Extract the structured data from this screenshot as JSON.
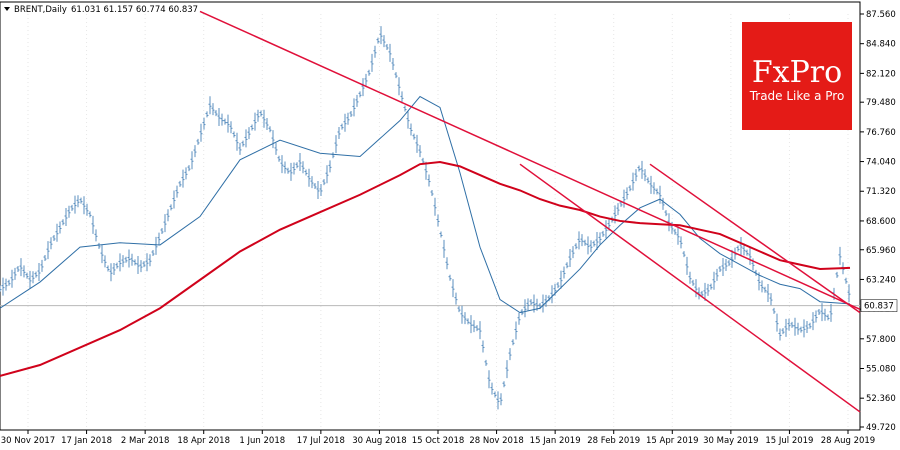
{
  "chart_data": {
    "type": "line",
    "header": {
      "symbol": "BRENT,Daily",
      "ohlc": "61.031 61.157 60.774 60.837"
    },
    "ylim": [
      49.72,
      87.56
    ],
    "y_ticks": [
      "87.560",
      "84.840",
      "82.120",
      "79.480",
      "76.760",
      "74.040",
      "71.320",
      "68.600",
      "65.960",
      "63.240",
      "60.520",
      "57.800",
      "55.080",
      "52.360",
      "49.720"
    ],
    "x_ticks": [
      "30 Nov 2017",
      "17 Jan 2018",
      "2 Mar 2018",
      "18 Apr 2018",
      "1 Jun 2018",
      "17 Jul 2018",
      "30 Aug 2018",
      "15 Oct 2018",
      "28 Nov 2018",
      "15 Jan 2019",
      "28 Feb 2019",
      "15 Apr 2019",
      "30 May 2019",
      "15 Jul 2019",
      "28 Aug 2019"
    ],
    "current_price": "60.837",
    "colors": {
      "price": "#5b8fbf",
      "ma_fast": "#2f6fa6",
      "ma_slow": "#d0021b",
      "trendline": "#e0103a",
      "grid": "#e6e6e6"
    },
    "series": [
      {
        "role": "price",
        "x": [
          0,
          10,
          20,
          30,
          40,
          50,
          60,
          70,
          80,
          90,
          100,
          110,
          120,
          130,
          140,
          150,
          160,
          170,
          180,
          190,
          200,
          210,
          220,
          230,
          240,
          250,
          260,
          270,
          280,
          290,
          300,
          310,
          320,
          330,
          340,
          350,
          360,
          370,
          380,
          390,
          400,
          410,
          420,
          430,
          440,
          450,
          460,
          470,
          480,
          490,
          500,
          510,
          520,
          530,
          540,
          550,
          560,
          570,
          580,
          590,
          600,
          610,
          620,
          630,
          640,
          650,
          660,
          670,
          680,
          690,
          700,
          710,
          720,
          730,
          740,
          750,
          760,
          770,
          780,
          790,
          800,
          810,
          820,
          830,
          840,
          850
        ],
        "values": [
          62.4,
          63.0,
          64.5,
          63.2,
          64.0,
          66.4,
          68.0,
          69.6,
          70.6,
          69.2,
          66.0,
          63.8,
          64.8,
          65.2,
          64.4,
          65.0,
          67.2,
          69.6,
          72.0,
          73.6,
          76.4,
          79.2,
          78.0,
          77.4,
          75.2,
          76.8,
          78.6,
          77.0,
          74.0,
          73.0,
          74.0,
          72.4,
          71.2,
          73.6,
          77.0,
          78.2,
          80.2,
          82.4,
          85.8,
          84.0,
          80.6,
          77.2,
          75.0,
          72.0,
          67.8,
          63.4,
          60.2,
          59.2,
          58.6,
          53.6,
          51.8,
          56.4,
          60.0,
          61.2,
          60.8,
          61.6,
          63.0,
          65.2,
          67.0,
          66.2,
          67.0,
          68.4,
          70.0,
          71.6,
          73.6,
          72.0,
          71.0,
          68.2,
          67.0,
          63.4,
          61.8,
          62.4,
          64.2,
          64.8,
          66.4,
          65.4,
          62.8,
          61.8,
          58.2,
          59.2,
          58.6,
          59.0,
          60.4,
          59.6,
          65.4,
          61.6
        ]
      },
      {
        "role": "ma_fast",
        "x": [
          0,
          40,
          80,
          120,
          160,
          200,
          240,
          280,
          320,
          360,
          400,
          420,
          440,
          460,
          480,
          500,
          520,
          540,
          560,
          580,
          600,
          620,
          640,
          660,
          680,
          700,
          720,
          740,
          760,
          780,
          800,
          820,
          850
        ],
        "values": [
          60.6,
          63.0,
          66.2,
          66.6,
          66.4,
          69.0,
          74.2,
          76.0,
          74.8,
          74.5,
          77.8,
          80.0,
          79.0,
          73.0,
          66.2,
          61.4,
          60.2,
          60.6,
          62.4,
          64.2,
          66.4,
          68.2,
          69.8,
          70.6,
          69.2,
          67.0,
          65.6,
          64.6,
          63.6,
          62.8,
          62.4,
          61.2,
          61.0
        ]
      },
      {
        "role": "ma_slow",
        "x": [
          0,
          40,
          80,
          120,
          160,
          200,
          240,
          280,
          320,
          360,
          400,
          420,
          440,
          460,
          480,
          500,
          520,
          540,
          560,
          580,
          600,
          620,
          640,
          660,
          680,
          700,
          720,
          740,
          760,
          780,
          800,
          820,
          850
        ],
        "values": [
          54.4,
          55.4,
          57.0,
          58.6,
          60.6,
          63.2,
          65.8,
          67.8,
          69.4,
          71.0,
          72.8,
          73.8,
          74.0,
          73.6,
          72.8,
          72.0,
          71.4,
          70.6,
          70.0,
          69.6,
          69.0,
          68.6,
          68.4,
          68.3,
          68.2,
          67.8,
          67.4,
          66.6,
          65.8,
          65.0,
          64.6,
          64.2,
          64.3
        ]
      },
      {
        "role": "trend_upper_main",
        "x": [
          200,
          860
        ],
        "values": [
          87.8,
          60.5
        ]
      },
      {
        "role": "trend_lower_channel",
        "x": [
          520,
          860
        ],
        "values": [
          73.8,
          51.1
        ]
      },
      {
        "role": "trend_upper_channel",
        "x": [
          650,
          860
        ],
        "values": [
          73.8,
          60.2
        ]
      }
    ],
    "plot_area": {
      "x0": 0,
      "x1": 860,
      "y_top": 87.56,
      "y_bottom": 49.72
    }
  },
  "logo": {
    "brand": "FxPro",
    "tagline": "Trade Like a Pro"
  }
}
